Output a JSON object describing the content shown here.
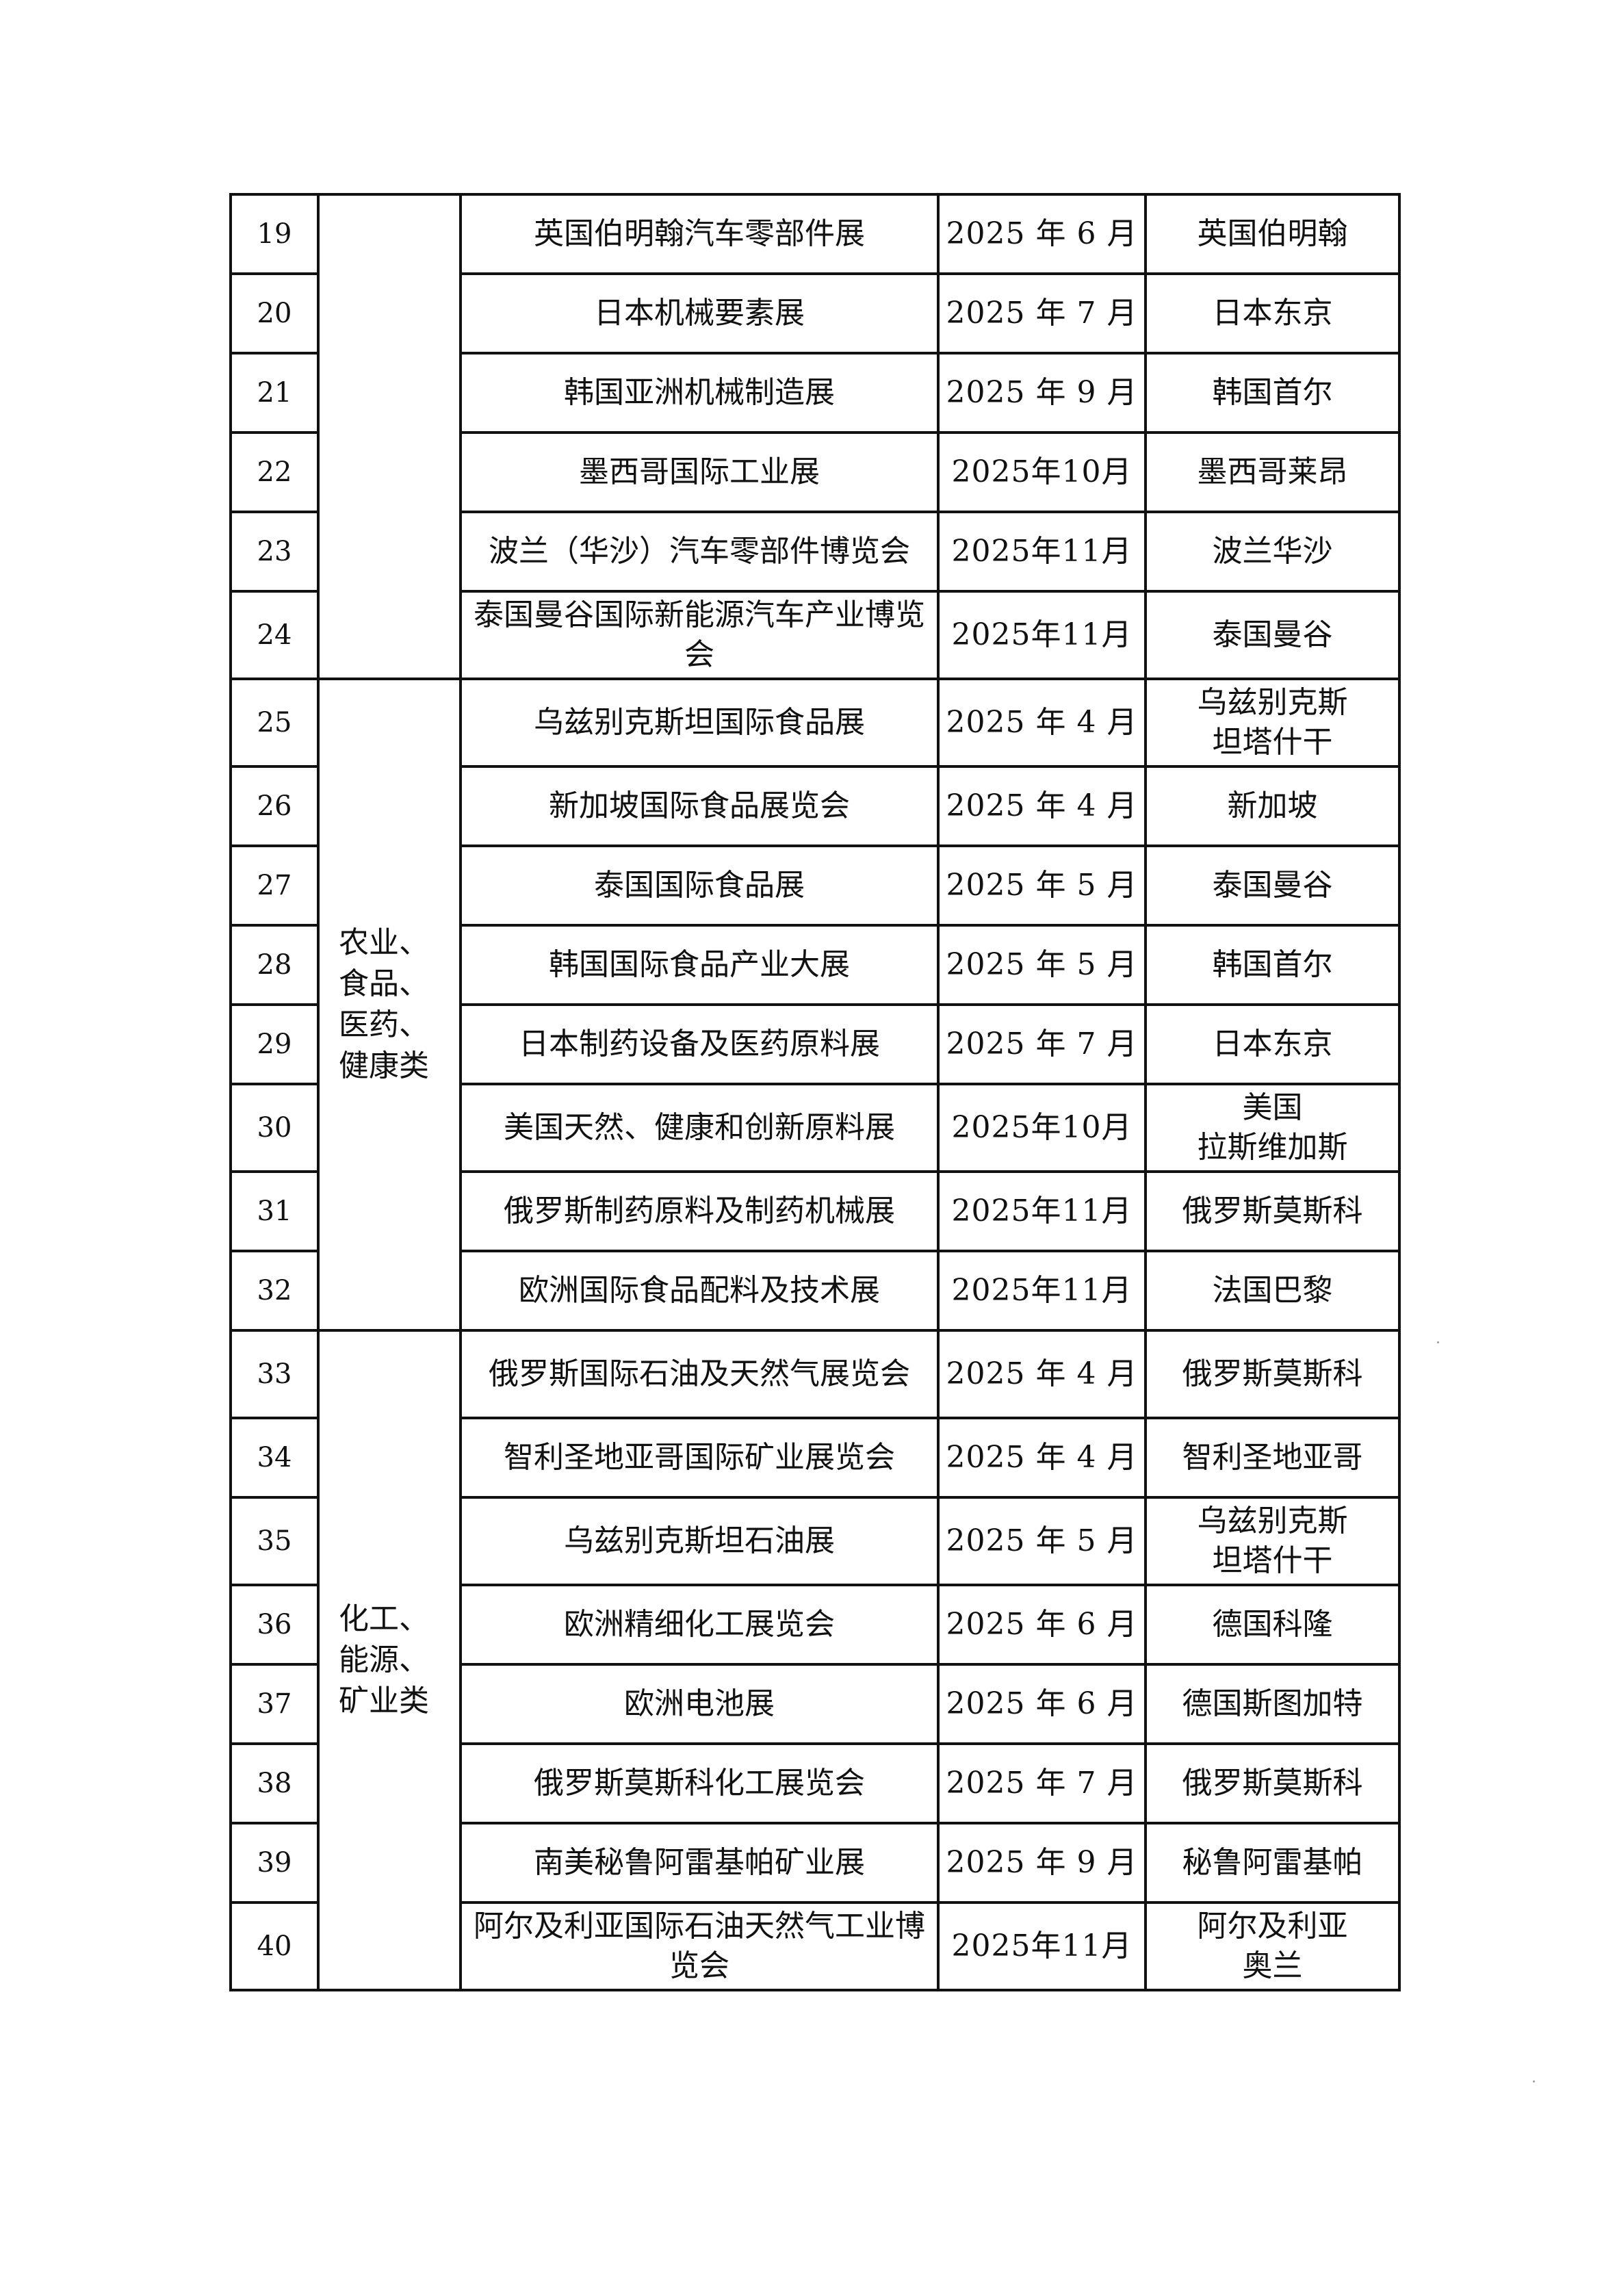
{
  "groups": [
    {
      "category": "",
      "rows": [
        {
          "no": "19",
          "name": "英国伯明翰汽车零部件展",
          "date": "2025 年 6 月",
          "place": "英国伯明翰"
        },
        {
          "no": "20",
          "name": "日本机械要素展",
          "date": "2025 年 7 月",
          "place": "日本东京"
        },
        {
          "no": "21",
          "name": "韩国亚洲机械制造展",
          "date": "2025 年 9 月",
          "place": "韩国首尔"
        },
        {
          "no": "22",
          "name": "墨西哥国际工业展",
          "date": "2025年10月",
          "place": "墨西哥莱昂"
        },
        {
          "no": "23",
          "name": "波兰（华沙）汽车零部件博览会",
          "date": "2025年11月",
          "place": "波兰华沙"
        },
        {
          "no": "24",
          "name": "泰国曼谷国际新能源汽车产业博览会",
          "date": "2025年11月",
          "place": "泰国曼谷"
        }
      ]
    },
    {
      "category": "农业、食品、医药、健康类",
      "rows": [
        {
          "no": "25",
          "name": "乌兹别克斯坦国际食品展",
          "date": "2025 年 4 月",
          "place": "乌兹别克斯坦塔什干"
        },
        {
          "no": "26",
          "name": "新加坡国际食品展览会",
          "date": "2025 年 4 月",
          "place": "新加坡"
        },
        {
          "no": "27",
          "name": "泰国国际食品展",
          "date": "2025 年 5 月",
          "place": "泰国曼谷"
        },
        {
          "no": "28",
          "name": "韩国国际食品产业大展",
          "date": "2025 年 5 月",
          "place": "韩国首尔"
        },
        {
          "no": "29",
          "name": "日本制药设备及医药原料展",
          "date": "2025 年 7 月",
          "place": "日本东京"
        },
        {
          "no": "30",
          "name": "美国天然、健康和创新原料展",
          "date": "2025年10月",
          "place": "美国拉斯维加斯"
        },
        {
          "no": "31",
          "name": "俄罗斯制药原料及制药机械展",
          "date": "2025年11月",
          "place": "俄罗斯莫斯科"
        },
        {
          "no": "32",
          "name": "欧洲国际食品配料及技术展",
          "date": "2025年11月",
          "place": "法国巴黎"
        }
      ]
    },
    {
      "category": "化工、能源、矿业类",
      "rows": [
        {
          "no": "33",
          "name": "俄罗斯国际石油及天然气展览会",
          "date": "2025 年 4 月",
          "place": "俄罗斯莫斯科"
        },
        {
          "no": "34",
          "name": "智利圣地亚哥国际矿业展览会",
          "date": "2025 年 4 月",
          "place": "智利圣地亚哥"
        },
        {
          "no": "35",
          "name": "乌兹别克斯坦石油展",
          "date": "2025 年 5 月",
          "place": "乌兹别克斯坦塔什干"
        },
        {
          "no": "36",
          "name": "欧洲精细化工展览会",
          "date": "2025 年 6 月",
          "place": "德国科隆"
        },
        {
          "no": "37",
          "name": "欧洲电池展",
          "date": "2025 年 6 月",
          "place": "德国斯图加特"
        },
        {
          "no": "38",
          "name": "俄罗斯莫斯科化工展览会",
          "date": "2025 年 7 月",
          "place": "俄罗斯莫斯科"
        },
        {
          "no": "39",
          "name": "南美秘鲁阿雷基帕矿业展",
          "date": "2025 年 9 月",
          "place": "秘鲁阿雷基帕"
        },
        {
          "no": "40",
          "name": "阿尔及利亚国际石油天然气工业博览会",
          "date": "2025年11月",
          "place": "阿尔及利亚奥兰"
        }
      ]
    }
  ]
}
